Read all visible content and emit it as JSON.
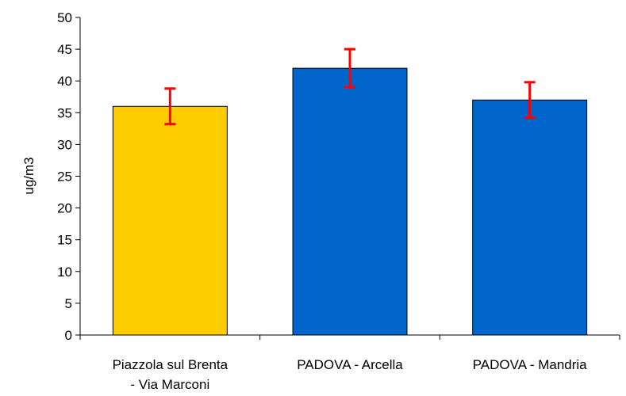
{
  "chart_data": {
    "type": "bar",
    "title": "",
    "xlabel": "",
    "ylabel": "ug/m3",
    "ylim": [
      0,
      50
    ],
    "yticks": [
      0,
      5,
      10,
      15,
      20,
      25,
      30,
      35,
      40,
      45,
      50
    ],
    "grid": false,
    "categories": [
      [
        "Piazzola sul Brenta",
        "- Via Marconi"
      ],
      [
        "PADOVA - Arcella"
      ],
      [
        "PADOVA - Mandria"
      ]
    ],
    "values": [
      36,
      42,
      37
    ],
    "error_low": [
      33.2,
      39,
      34.2
    ],
    "error_high": [
      38.8,
      45,
      39.8
    ],
    "bar_colors": [
      "#FFCC00",
      "#0066CC",
      "#0066CC"
    ],
    "error_color": "#FF0000"
  }
}
